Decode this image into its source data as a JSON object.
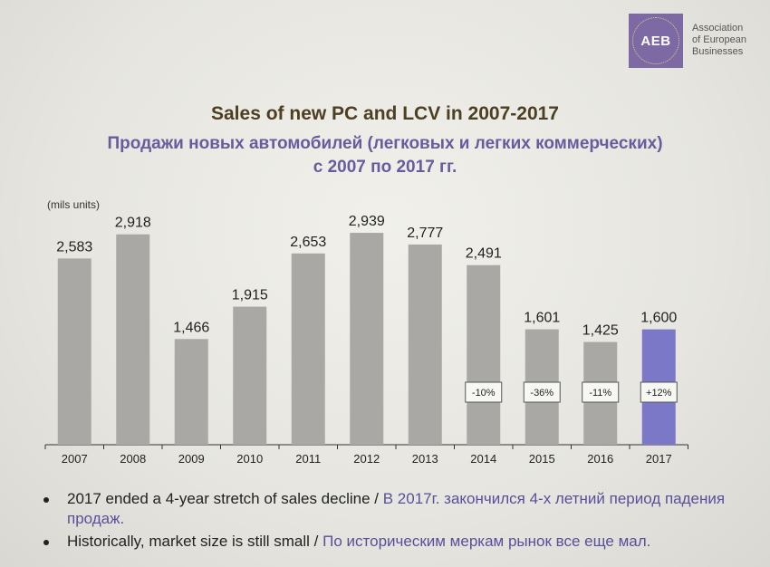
{
  "logo": {
    "abbr": "AEB",
    "name_lines": [
      "Association",
      "of European",
      "Businesses"
    ]
  },
  "title": {
    "en": "Sales of new PC and LCV in 2007-2017",
    "ru_line1": "Продажи новых автомобилей (легковых и легких коммерческих)",
    "ru_line2": "с 2007 по 2017 гг."
  },
  "units": "(mils units)",
  "chart_data": {
    "type": "bar",
    "categories": [
      "2007",
      "2008",
      "2009",
      "2010",
      "2011",
      "2012",
      "2013",
      "2014",
      "2015",
      "2016",
      "2017"
    ],
    "values": [
      2583,
      2918,
      1466,
      1915,
      2653,
      2939,
      2777,
      2491,
      1601,
      1425,
      1600
    ],
    "value_labels": [
      "2,583",
      "2,918",
      "1,466",
      "1,915",
      "2,653",
      "2,939",
      "2,777",
      "2,491",
      "1,601",
      "1,425",
      "1,600"
    ],
    "change_labels": [
      {
        "category": "2014",
        "text": "-10%"
      },
      {
        "category": "2015",
        "text": "-36%"
      },
      {
        "category": "2016",
        "text": "-11%"
      },
      {
        "category": "2017",
        "text": "+12%"
      }
    ],
    "colors": {
      "bar": "#a9a8a4",
      "highlight": "#7b78c8"
    },
    "highlight_category": "2017",
    "ylim": [
      0,
      3000
    ],
    "grid": false
  },
  "bullets": [
    {
      "en": "2017 ended a 4-year stretch of sales decline / ",
      "ru": "В 2017г. закончился 4-х летний период падения продаж."
    },
    {
      "en": "Historically, market size is still small / ",
      "ru": "По историческим меркам рынок все еще мал."
    }
  ]
}
